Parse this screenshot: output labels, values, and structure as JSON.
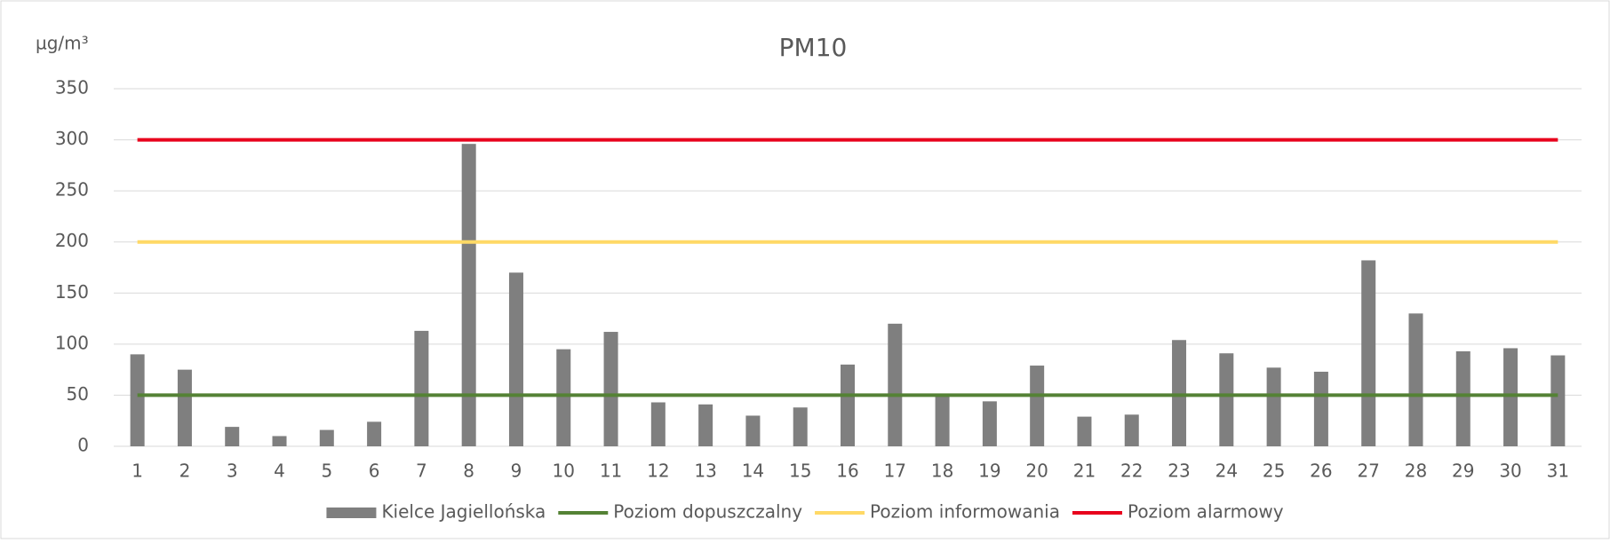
{
  "chart_data": {
    "type": "bar",
    "title": "PM10",
    "ylabel": "µg/m³",
    "categories": [
      "1",
      "2",
      "3",
      "4",
      "5",
      "6",
      "7",
      "8",
      "9",
      "10",
      "11",
      "12",
      "13",
      "14",
      "15",
      "16",
      "17",
      "18",
      "19",
      "20",
      "21",
      "22",
      "23",
      "24",
      "25",
      "26",
      "27",
      "28",
      "29",
      "30",
      "31"
    ],
    "series": [
      {
        "name": "Kielce Jagiellońska",
        "type": "bar",
        "color": "#7f7f7f",
        "values": [
          90,
          75,
          19,
          10,
          16,
          24,
          113,
          296,
          170,
          95,
          112,
          43,
          41,
          30,
          38,
          80,
          120,
          50,
          44,
          79,
          29,
          31,
          104,
          91,
          77,
          73,
          182,
          130,
          93,
          96,
          89
        ]
      },
      {
        "name": "Poziom dopuszczalny",
        "type": "line",
        "color": "#548235",
        "values": [
          50,
          50,
          50,
          50,
          50,
          50,
          50,
          50,
          50,
          50,
          50,
          50,
          50,
          50,
          50,
          50,
          50,
          50,
          50,
          50,
          50,
          50,
          50,
          50,
          50,
          50,
          50,
          50,
          50,
          50,
          50
        ]
      },
      {
        "name": "Poziom informowania",
        "type": "line",
        "color": "#ffd966",
        "values": [
          200,
          200,
          200,
          200,
          200,
          200,
          200,
          200,
          200,
          200,
          200,
          200,
          200,
          200,
          200,
          200,
          200,
          200,
          200,
          200,
          200,
          200,
          200,
          200,
          200,
          200,
          200,
          200,
          200,
          200,
          200
        ]
      },
      {
        "name": "Poziom alarmowy",
        "type": "line",
        "color": "#e8001c",
        "values": [
          300,
          300,
          300,
          300,
          300,
          300,
          300,
          300,
          300,
          300,
          300,
          300,
          300,
          300,
          300,
          300,
          300,
          300,
          300,
          300,
          300,
          300,
          300,
          300,
          300,
          300,
          300,
          300,
          300,
          300,
          300
        ]
      }
    ],
    "ylim": [
      0,
      350
    ],
    "yticks": [
      0,
      50,
      100,
      150,
      200,
      250,
      300,
      350
    ],
    "grid": true
  }
}
